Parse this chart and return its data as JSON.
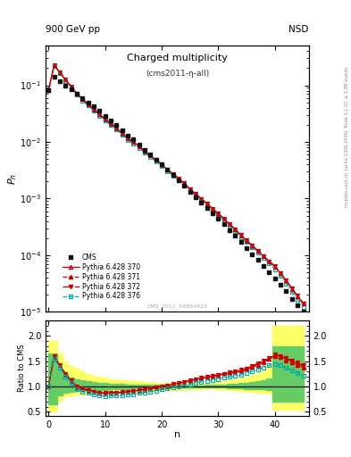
{
  "title": "Charged multiplicity",
  "title_cms": "(cms2011-η-all)",
  "header_left": "900 GeV pp",
  "header_right": "NSD",
  "right_label": "Rivet 3.1.10, ≥ 3.3M events",
  "arxiv_label": "[arXiv:1306.3436]",
  "mcplots_label": "mcplots.cern.ch",
  "watermark": "CMS_2011_S8884919",
  "xlabel": "n",
  "ylabel_main": "P_{n}",
  "ylabel_ratio": "Ratio to CMS",
  "cms_color": "#111111",
  "line370_color": "#cc0000",
  "line371_color": "#cc0000",
  "line372_color": "#cc0000",
  "line376_color": "#00aaaa",
  "yellow_band_color": "#ffff66",
  "green_band_color": "#66cc66",
  "n_values": [
    0,
    1,
    2,
    3,
    4,
    5,
    6,
    7,
    8,
    9,
    10,
    11,
    12,
    13,
    14,
    15,
    16,
    17,
    18,
    19,
    20,
    21,
    22,
    23,
    24,
    25,
    26,
    27,
    28,
    29,
    30,
    31,
    32,
    33,
    34,
    35,
    36,
    37,
    38,
    39,
    40,
    41,
    42,
    43,
    44,
    45
  ],
  "cms_values": [
    0.082,
    0.14,
    0.12,
    0.1,
    0.085,
    0.072,
    0.06,
    0.05,
    0.042,
    0.035,
    0.029,
    0.024,
    0.02,
    0.016,
    0.013,
    0.011,
    0.009,
    0.0073,
    0.006,
    0.0049,
    0.004,
    0.0032,
    0.0026,
    0.0021,
    0.0017,
    0.0013,
    0.00105,
    0.00085,
    0.00068,
    0.00055,
    0.00044,
    0.00035,
    0.00028,
    0.00022,
    0.00017,
    0.000135,
    0.000105,
    8.2e-05,
    6.4e-05,
    5e-05,
    3.9e-05,
    3e-05,
    2.3e-05,
    1.7e-05,
    1.3e-05,
    1e-05
  ],
  "ratio370": [
    1.0,
    1.6,
    1.42,
    1.25,
    1.12,
    1.0,
    0.96,
    0.93,
    0.9,
    0.88,
    0.87,
    0.88,
    0.88,
    0.89,
    0.9,
    0.91,
    0.93,
    0.94,
    0.96,
    0.98,
    1.0,
    1.02,
    1.05,
    1.07,
    1.09,
    1.12,
    1.14,
    1.17,
    1.19,
    1.21,
    1.23,
    1.25,
    1.27,
    1.29,
    1.32,
    1.35,
    1.4,
    1.45,
    1.5,
    1.55,
    1.62,
    1.6,
    1.55,
    1.5,
    1.45,
    1.4
  ],
  "ratio371": [
    1.0,
    1.6,
    1.42,
    1.25,
    1.11,
    0.99,
    0.95,
    0.92,
    0.89,
    0.87,
    0.86,
    0.87,
    0.87,
    0.88,
    0.89,
    0.9,
    0.92,
    0.93,
    0.95,
    0.97,
    0.99,
    1.01,
    1.04,
    1.06,
    1.08,
    1.11,
    1.14,
    1.16,
    1.18,
    1.2,
    1.22,
    1.24,
    1.26,
    1.28,
    1.3,
    1.33,
    1.38,
    1.43,
    1.48,
    1.54,
    1.6,
    1.58,
    1.52,
    1.48,
    1.43,
    1.38
  ],
  "ratio372": [
    1.0,
    1.6,
    1.42,
    1.25,
    1.12,
    1.0,
    0.96,
    0.93,
    0.9,
    0.88,
    0.87,
    0.88,
    0.88,
    0.89,
    0.9,
    0.91,
    0.93,
    0.94,
    0.96,
    0.98,
    1.0,
    1.02,
    1.05,
    1.07,
    1.09,
    1.12,
    1.14,
    1.17,
    1.19,
    1.21,
    1.23,
    1.25,
    1.28,
    1.3,
    1.33,
    1.36,
    1.41,
    1.46,
    1.51,
    1.56,
    1.63,
    1.61,
    1.56,
    1.52,
    1.47,
    1.42
  ],
  "ratio376": [
    1.0,
    1.55,
    1.38,
    1.2,
    1.07,
    0.94,
    0.9,
    0.87,
    0.84,
    0.82,
    0.81,
    0.82,
    0.82,
    0.83,
    0.84,
    0.85,
    0.87,
    0.88,
    0.9,
    0.92,
    0.94,
    0.96,
    0.98,
    1.0,
    1.02,
    1.04,
    1.07,
    1.09,
    1.11,
    1.13,
    1.15,
    1.17,
    1.19,
    1.21,
    1.23,
    1.26,
    1.3,
    1.34,
    1.38,
    1.42,
    1.45,
    1.42,
    1.37,
    1.32,
    1.27,
    1.22
  ],
  "ylim_main": [
    1e-05,
    0.5
  ],
  "ylim_ratio": [
    0.42,
    2.3
  ],
  "xlim": [
    -0.5,
    46
  ],
  "yellow_band_lo": [
    0.5,
    0.5,
    0.72,
    0.8,
    0.83,
    0.84,
    0.85,
    0.855,
    0.86,
    0.865,
    0.87,
    0.875,
    0.88,
    0.885,
    0.89,
    0.895,
    0.9,
    0.905,
    0.91,
    0.915,
    0.92,
    0.925,
    0.93,
    0.935,
    0.94,
    0.945,
    0.95,
    0.955,
    0.96,
    0.96,
    0.95,
    0.94,
    0.93,
    0.92,
    0.91,
    0.9,
    0.89,
    0.88,
    0.87,
    0.86,
    0.55,
    0.55,
    0.55,
    0.55,
    0.55,
    0.55
  ],
  "yellow_band_hi": [
    1.9,
    1.9,
    1.65,
    1.5,
    1.4,
    1.35,
    1.3,
    1.25,
    1.22,
    1.19,
    1.17,
    1.15,
    1.14,
    1.13,
    1.12,
    1.11,
    1.1,
    1.09,
    1.085,
    1.08,
    1.075,
    1.07,
    1.07,
    1.07,
    1.07,
    1.07,
    1.07,
    1.07,
    1.08,
    1.09,
    1.1,
    1.11,
    1.12,
    1.14,
    1.16,
    1.19,
    1.22,
    1.26,
    1.3,
    1.4,
    2.2,
    2.2,
    2.2,
    2.2,
    2.2,
    2.2
  ],
  "green_band_lo": [
    0.65,
    0.65,
    0.82,
    0.87,
    0.9,
    0.91,
    0.915,
    0.92,
    0.925,
    0.93,
    0.935,
    0.94,
    0.945,
    0.95,
    0.955,
    0.96,
    0.962,
    0.965,
    0.968,
    0.97,
    0.972,
    0.974,
    0.976,
    0.978,
    0.98,
    0.982,
    0.984,
    0.986,
    0.988,
    0.985,
    0.98,
    0.975,
    0.97,
    0.965,
    0.96,
    0.955,
    0.95,
    0.945,
    0.94,
    0.935,
    0.7,
    0.7,
    0.7,
    0.7,
    0.7,
    0.7
  ],
  "green_band_hi": [
    1.65,
    1.65,
    1.35,
    1.25,
    1.18,
    1.15,
    1.13,
    1.11,
    1.09,
    1.08,
    1.07,
    1.06,
    1.055,
    1.05,
    1.045,
    1.04,
    1.037,
    1.035,
    1.033,
    1.03,
    1.028,
    1.026,
    1.025,
    1.025,
    1.025,
    1.025,
    1.026,
    1.027,
    1.028,
    1.03,
    1.035,
    1.04,
    1.048,
    1.056,
    1.065,
    1.075,
    1.09,
    1.108,
    1.13,
    1.155,
    1.8,
    1.8,
    1.8,
    1.8,
    1.8,
    1.8
  ]
}
